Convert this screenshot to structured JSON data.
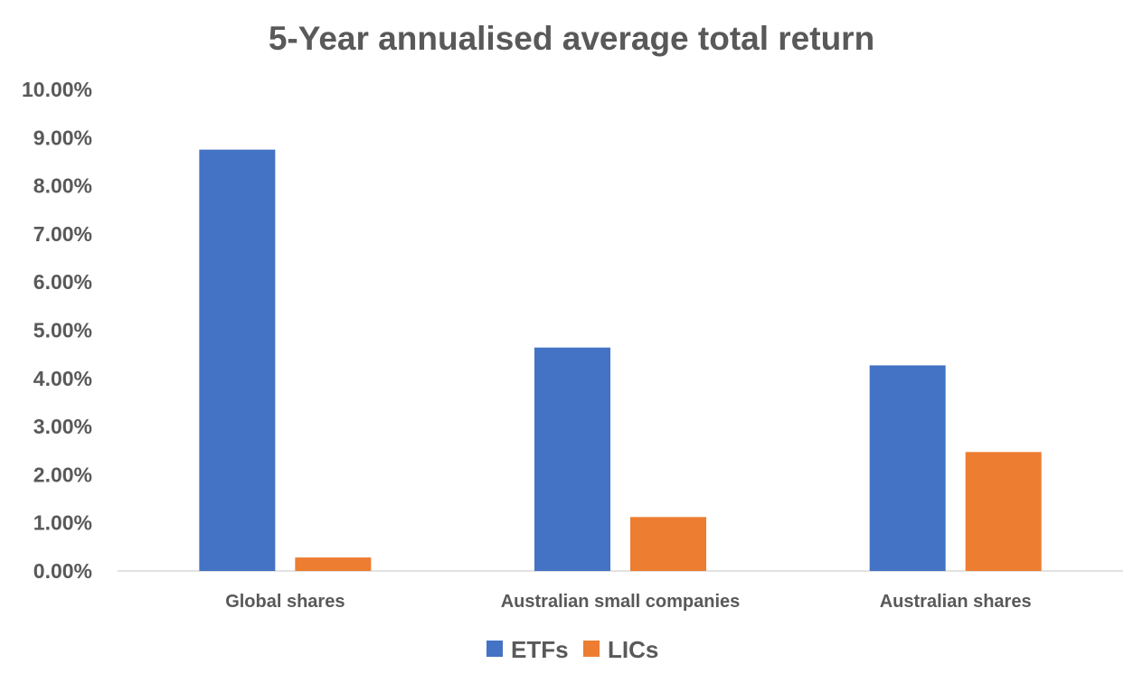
{
  "chart_data": {
    "type": "bar",
    "title": "5-Year annualised average total return",
    "xlabel": "",
    "ylabel": "",
    "categories": [
      "Global shares",
      "Australian small companies",
      "Australian shares"
    ],
    "series": [
      {
        "name": "ETFs",
        "values": [
          8.75,
          4.64,
          4.27
        ]
      },
      {
        "name": "LICs",
        "values": [
          0.28,
          1.12,
          2.47
        ]
      }
    ],
    "ylim": [
      0,
      10
    ],
    "y_ticks": [
      "0.00%",
      "1.00%",
      "2.00%",
      "3.00%",
      "4.00%",
      "5.00%",
      "6.00%",
      "7.00%",
      "8.00%",
      "9.00%",
      "10.00%"
    ],
    "grid": false,
    "legend_position": "bottom",
    "colors": {
      "ETFs": "#4472C4",
      "LICs": "#ED7D31",
      "text": "#595959",
      "axis": "#D9D9D9"
    }
  }
}
